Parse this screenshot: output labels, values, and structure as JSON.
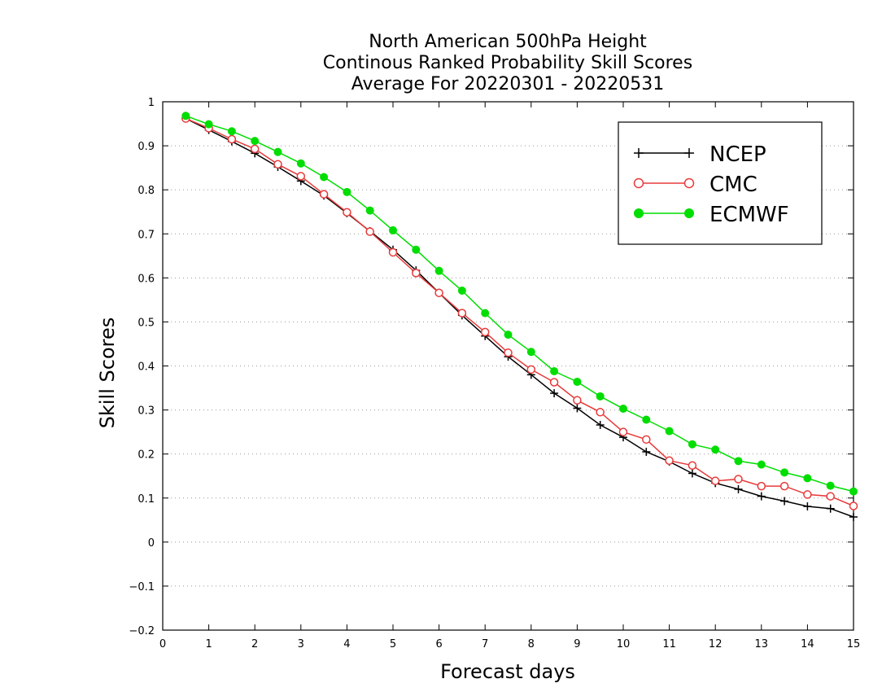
{
  "chart_data": {
    "type": "line",
    "title_lines": [
      "North American 500hPa Height",
      "Continous Ranked Probability Skill Scores",
      "Average For 20220301 - 20220531"
    ],
    "xlabel": "Forecast days",
    "ylabel": "Skill Scores",
    "xlim": [
      0,
      15
    ],
    "ylim": [
      -0.2,
      1
    ],
    "xticks": [
      "0",
      "1",
      "2",
      "3",
      "4",
      "5",
      "6",
      "7",
      "8",
      "9",
      "10",
      "11",
      "12",
      "13",
      "14",
      "15"
    ],
    "yticks": [
      "−0.2",
      "−0.1",
      "0",
      "0.1",
      "0.2",
      "0.3",
      "0.4",
      "0.5",
      "0.6",
      "0.7",
      "0.8",
      "0.9",
      "1"
    ],
    "grid": "horizontal dotted",
    "legend_position": "top-right",
    "x": [
      0.5,
      1,
      1.5,
      2,
      2.5,
      3,
      3.5,
      4,
      4.5,
      5,
      5.5,
      6,
      6.5,
      7,
      7.5,
      8,
      8.5,
      9,
      9.5,
      10,
      10.5,
      11,
      11.5,
      12,
      12.5,
      13,
      13.5,
      14,
      14.5,
      15
    ],
    "series": [
      {
        "name": "NCEP",
        "color": "#000000",
        "marker": "plus",
        "values": [
          0.962,
          0.936,
          0.91,
          0.883,
          0.852,
          0.82,
          0.787,
          0.747,
          0.706,
          0.664,
          0.617,
          0.566,
          0.515,
          0.468,
          0.421,
          0.38,
          0.338,
          0.304,
          0.266,
          0.238,
          0.205,
          0.183,
          0.156,
          0.134,
          0.12,
          0.104,
          0.093,
          0.081,
          0.076,
          0.057
        ]
      },
      {
        "name": "CMC",
        "color": "#e83a3a",
        "marker": "open-circle",
        "values": [
          0.962,
          0.94,
          0.915,
          0.893,
          0.858,
          0.831,
          0.79,
          0.749,
          0.705,
          0.658,
          0.611,
          0.566,
          0.52,
          0.477,
          0.43,
          0.392,
          0.363,
          0.322,
          0.295,
          0.25,
          0.233,
          0.185,
          0.174,
          0.139,
          0.143,
          0.127,
          0.127,
          0.108,
          0.104,
          0.082
        ]
      },
      {
        "name": "ECMWF",
        "color": "#00dd00",
        "marker": "filled-circle",
        "values": [
          0.968,
          0.949,
          0.933,
          0.911,
          0.886,
          0.86,
          0.829,
          0.795,
          0.753,
          0.708,
          0.664,
          0.616,
          0.571,
          0.52,
          0.471,
          0.432,
          0.388,
          0.364,
          0.331,
          0.303,
          0.278,
          0.252,
          0.222,
          0.21,
          0.184,
          0.176,
          0.158,
          0.145,
          0.128,
          0.115
        ]
      }
    ]
  }
}
